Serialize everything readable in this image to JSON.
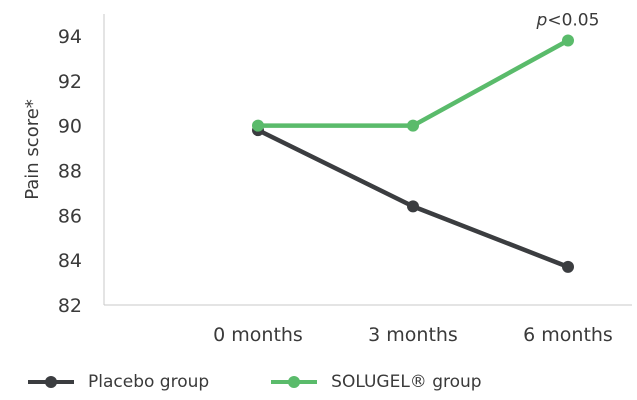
{
  "chart_data": {
    "type": "line",
    "categories": [
      "0 months",
      "3 months",
      "6 months"
    ],
    "series": [
      {
        "name": "Placebo group",
        "values": [
          89.8,
          86.4,
          83.7
        ],
        "color": "#3b3d40"
      },
      {
        "name": "SOLUGEL® group",
        "values": [
          90.0,
          90.0,
          93.8
        ],
        "color": "#5abb6b"
      }
    ],
    "ylabel": "Pain score*",
    "ylim": [
      82,
      94
    ],
    "yticks": [
      82,
      84,
      86,
      88,
      90,
      92,
      94
    ],
    "annotation": {
      "text": "p<0.05",
      "category": "6 months",
      "series": "SOLUGEL® group"
    },
    "legend_position": "bottom-left",
    "grid": false
  }
}
